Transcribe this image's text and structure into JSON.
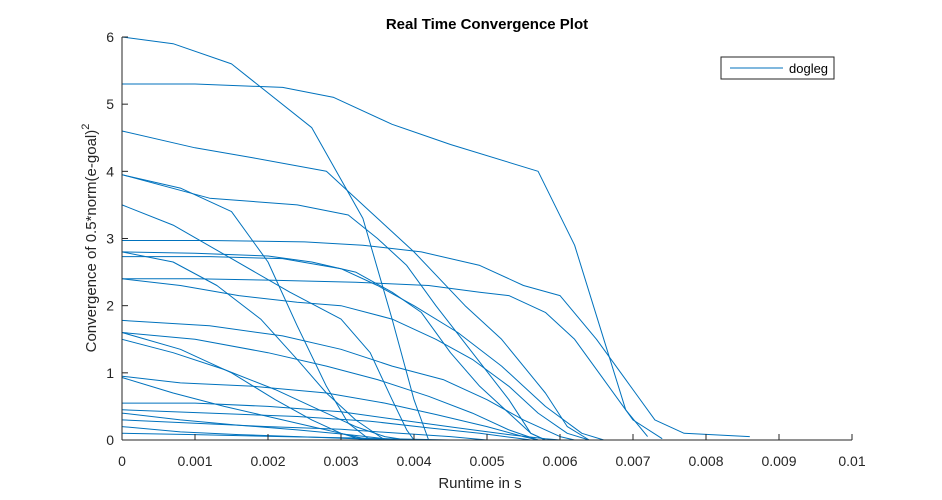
{
  "chart_data": {
    "type": "line",
    "title": "Real Time Convergence Plot",
    "xlabel": "Runtime in s",
    "ylabel_main": "Convergence of 0.5*norm(e-goal)",
    "ylabel_sup": "2",
    "xlim": [
      0,
      0.01
    ],
    "ylim": [
      0,
      6
    ],
    "xticks": [
      "0",
      "0.001",
      "0.002",
      "0.003",
      "0.004",
      "0.005",
      "0.006",
      "0.007",
      "0.008",
      "0.009",
      "0.01"
    ],
    "yticks": [
      "0",
      "1",
      "2",
      "3",
      "4",
      "5",
      "6"
    ],
    "grid": false,
    "legend_position": "top-right",
    "series_color": "#0072BD",
    "series": [
      {
        "name": "dogleg",
        "lines": [
          [
            [
              0,
              6.0
            ],
            [
              0.0007,
              5.9
            ],
            [
              0.0015,
              5.6
            ],
            [
              0.0026,
              4.65
            ],
            [
              0.0033,
              3.3
            ],
            [
              0.0037,
              1.8
            ],
            [
              0.004,
              0.6
            ],
            [
              0.0042,
              0.0
            ]
          ],
          [
            [
              0,
              5.3
            ],
            [
              0.001,
              5.3
            ],
            [
              0.0022,
              5.25
            ],
            [
              0.0029,
              5.1
            ],
            [
              0.0037,
              4.7
            ],
            [
              0.0045,
              4.4
            ],
            [
              0.0057,
              4.0
            ],
            [
              0.0062,
              2.9
            ],
            [
              0.0066,
              1.5
            ],
            [
              0.0069,
              0.45
            ],
            [
              0.0072,
              0.05
            ]
          ],
          [
            [
              0,
              4.6
            ],
            [
              0.001,
              4.35
            ],
            [
              0.0018,
              4.2
            ],
            [
              0.0028,
              4.0
            ],
            [
              0.0034,
              3.4
            ],
            [
              0.004,
              2.8
            ],
            [
              0.0047,
              2.0
            ],
            [
              0.0052,
              1.5
            ],
            [
              0.0058,
              0.7
            ],
            [
              0.0061,
              0.2
            ],
            [
              0.0064,
              0.0
            ]
          ],
          [
            [
              0,
              3.95
            ],
            [
              0.0008,
              3.75
            ],
            [
              0.0015,
              3.4
            ],
            [
              0.002,
              2.65
            ],
            [
              0.0024,
              1.7
            ],
            [
              0.0028,
              0.8
            ],
            [
              0.0031,
              0.25
            ],
            [
              0.0034,
              0.0
            ]
          ],
          [
            [
              0,
              3.95
            ],
            [
              0.0012,
              3.6
            ],
            [
              0.0024,
              3.5
            ],
            [
              0.0031,
              3.35
            ],
            [
              0.0035,
              3.0
            ],
            [
              0.0039,
              2.6
            ],
            [
              0.0043,
              2.0
            ],
            [
              0.0048,
              1.3
            ],
            [
              0.0053,
              0.6
            ],
            [
              0.0056,
              0.1
            ],
            [
              0.0058,
              0.0
            ]
          ],
          [
            [
              0,
              3.5
            ],
            [
              0.0007,
              3.2
            ],
            [
              0.0015,
              2.7
            ],
            [
              0.0023,
              2.2
            ],
            [
              0.003,
              1.8
            ],
            [
              0.0034,
              1.3
            ],
            [
              0.0037,
              0.6
            ],
            [
              0.0039,
              0.15
            ],
            [
              0.004,
              0.0
            ]
          ],
          [
            [
              0,
              2.97
            ],
            [
              0.0012,
              2.97
            ],
            [
              0.0025,
              2.95
            ],
            [
              0.0033,
              2.9
            ],
            [
              0.0041,
              2.8
            ],
            [
              0.0049,
              2.6
            ],
            [
              0.0055,
              2.3
            ],
            [
              0.006,
              2.15
            ],
            [
              0.0065,
              1.5
            ],
            [
              0.0069,
              0.9
            ],
            [
              0.0073,
              0.3
            ],
            [
              0.0077,
              0.1
            ],
            [
              0.0086,
              0.05
            ]
          ],
          [
            [
              0,
              2.8
            ],
            [
              0.0007,
              2.65
            ],
            [
              0.0013,
              2.3
            ],
            [
              0.0019,
              1.8
            ],
            [
              0.0024,
              1.2
            ],
            [
              0.0028,
              0.7
            ],
            [
              0.0032,
              0.3
            ],
            [
              0.0036,
              0.0
            ]
          ],
          [
            [
              0,
              2.8
            ],
            [
              0.001,
              2.78
            ],
            [
              0.002,
              2.74
            ],
            [
              0.0026,
              2.65
            ],
            [
              0.0032,
              2.5
            ],
            [
              0.0037,
              2.2
            ],
            [
              0.0041,
              1.9
            ],
            [
              0.0045,
              1.3
            ],
            [
              0.0049,
              0.8
            ],
            [
              0.0053,
              0.4
            ],
            [
              0.0056,
              0.1
            ],
            [
              0.0058,
              0.0
            ]
          ],
          [
            [
              0,
              2.73
            ],
            [
              0.0012,
              2.73
            ],
            [
              0.0022,
              2.7
            ],
            [
              0.003,
              2.55
            ],
            [
              0.0035,
              2.3
            ],
            [
              0.004,
              2.0
            ],
            [
              0.0046,
              1.6
            ],
            [
              0.0052,
              1.1
            ],
            [
              0.0058,
              0.5
            ],
            [
              0.0063,
              0.1
            ],
            [
              0.0066,
              0.0
            ]
          ],
          [
            [
              0,
              2.4
            ],
            [
              0.001,
              2.4
            ],
            [
              0.002,
              2.38
            ],
            [
              0.0032,
              2.35
            ],
            [
              0.0042,
              2.3
            ],
            [
              0.0049,
              2.2
            ],
            [
              0.0053,
              2.15
            ],
            [
              0.0058,
              1.9
            ],
            [
              0.0062,
              1.5
            ],
            [
              0.0066,
              0.9
            ],
            [
              0.007,
              0.3
            ],
            [
              0.0074,
              0.02
            ]
          ],
          [
            [
              0,
              2.4
            ],
            [
              0.0008,
              2.3
            ],
            [
              0.0016,
              2.15
            ],
            [
              0.0024,
              2.05
            ],
            [
              0.003,
              2.0
            ],
            [
              0.0037,
              1.8
            ],
            [
              0.0043,
              1.5
            ],
            [
              0.0048,
              1.2
            ],
            [
              0.0053,
              0.8
            ],
            [
              0.0057,
              0.4
            ],
            [
              0.0061,
              0.1
            ],
            [
              0.0064,
              0.0
            ]
          ],
          [
            [
              0,
              1.78
            ],
            [
              0.0012,
              1.7
            ],
            [
              0.0022,
              1.55
            ],
            [
              0.003,
              1.35
            ],
            [
              0.0037,
              1.1
            ],
            [
              0.0044,
              0.9
            ],
            [
              0.005,
              0.6
            ],
            [
              0.0055,
              0.3
            ],
            [
              0.006,
              0.05
            ],
            [
              0.0062,
              0.0
            ]
          ],
          [
            [
              0,
              1.6
            ],
            [
              0.0008,
              1.35
            ],
            [
              0.0015,
              1.0
            ],
            [
              0.0021,
              0.6
            ],
            [
              0.0026,
              0.3
            ],
            [
              0.003,
              0.1
            ],
            [
              0.0033,
              0.0
            ]
          ],
          [
            [
              0,
              1.6
            ],
            [
              0.001,
              1.5
            ],
            [
              0.002,
              1.3
            ],
            [
              0.0028,
              1.1
            ],
            [
              0.0035,
              0.9
            ],
            [
              0.0042,
              0.65
            ],
            [
              0.0048,
              0.4
            ],
            [
              0.0053,
              0.15
            ],
            [
              0.0057,
              0.0
            ]
          ],
          [
            [
              0,
              1.5
            ],
            [
              0.0007,
              1.3
            ],
            [
              0.0014,
              1.05
            ],
            [
              0.0021,
              0.75
            ],
            [
              0.0027,
              0.45
            ],
            [
              0.0032,
              0.2
            ],
            [
              0.0036,
              0.05
            ],
            [
              0.0039,
              0.0
            ]
          ],
          [
            [
              0,
              0.95
            ],
            [
              0.0008,
              0.85
            ],
            [
              0.0018,
              0.8
            ],
            [
              0.0028,
              0.7
            ],
            [
              0.0036,
              0.55
            ],
            [
              0.0043,
              0.38
            ],
            [
              0.005,
              0.2
            ],
            [
              0.0055,
              0.05
            ],
            [
              0.0057,
              0.0
            ]
          ],
          [
            [
              0,
              0.93
            ],
            [
              0.0007,
              0.7
            ],
            [
              0.0014,
              0.5
            ],
            [
              0.002,
              0.35
            ],
            [
              0.0026,
              0.2
            ],
            [
              0.003,
              0.1
            ],
            [
              0.0034,
              0.0
            ]
          ],
          [
            [
              0,
              0.55
            ],
            [
              0.001,
              0.55
            ],
            [
              0.002,
              0.5
            ],
            [
              0.003,
              0.42
            ],
            [
              0.0038,
              0.3
            ],
            [
              0.0046,
              0.18
            ],
            [
              0.0053,
              0.08
            ],
            [
              0.0058,
              0.02
            ],
            [
              0.006,
              0.0
            ]
          ],
          [
            [
              0,
              0.45
            ],
            [
              0.0012,
              0.4
            ],
            [
              0.0024,
              0.35
            ],
            [
              0.0034,
              0.28
            ],
            [
              0.0042,
              0.18
            ],
            [
              0.0049,
              0.1
            ],
            [
              0.0054,
              0.03
            ],
            [
              0.0056,
              0.0
            ]
          ],
          [
            [
              0,
              0.4
            ],
            [
              0.0008,
              0.3
            ],
            [
              0.0016,
              0.22
            ],
            [
              0.0024,
              0.15
            ],
            [
              0.0031,
              0.08
            ],
            [
              0.0036,
              0.02
            ],
            [
              0.0038,
              0.0
            ]
          ],
          [
            [
              0,
              0.3
            ],
            [
              0.001,
              0.25
            ],
            [
              0.002,
              0.2
            ],
            [
              0.003,
              0.16
            ],
            [
              0.0038,
              0.1
            ],
            [
              0.0045,
              0.05
            ],
            [
              0.005,
              0.0
            ]
          ],
          [
            [
              0,
              0.2
            ],
            [
              0.0008,
              0.12
            ],
            [
              0.0016,
              0.08
            ],
            [
              0.0024,
              0.05
            ],
            [
              0.0032,
              0.02
            ],
            [
              0.0038,
              0.0
            ]
          ],
          [
            [
              0,
              0.1
            ],
            [
              0.001,
              0.08
            ],
            [
              0.0022,
              0.05
            ],
            [
              0.0032,
              0.03
            ],
            [
              0.004,
              0.01
            ],
            [
              0.0045,
              0.0
            ]
          ]
        ]
      }
    ]
  }
}
